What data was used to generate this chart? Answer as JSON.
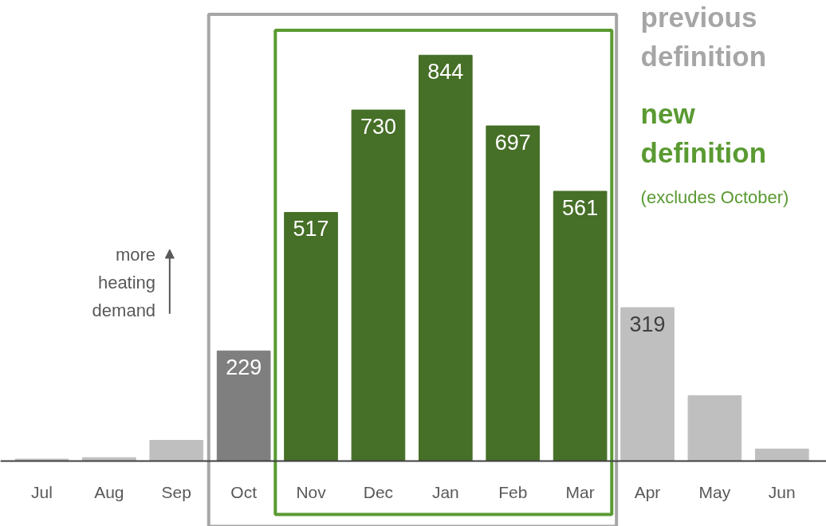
{
  "chart_data": {
    "type": "bar",
    "categories": [
      "Jul",
      "Aug",
      "Sep",
      "Oct",
      "Nov",
      "Dec",
      "Jan",
      "Feb",
      "Mar",
      "Apr",
      "May",
      "Jun"
    ],
    "values": [
      4,
      7,
      43,
      229,
      517,
      730,
      844,
      697,
      561,
      319,
      136,
      25
    ],
    "colors": [
      "#bfbfbf",
      "#bfbfbf",
      "#bfbfbf",
      "#7f7f7f",
      "#466f27",
      "#466f27",
      "#466f27",
      "#466f27",
      "#466f27",
      "#bfbfbf",
      "#bfbfbf",
      "#bfbfbf"
    ],
    "value_labels": [
      null,
      null,
      null,
      "229",
      "517",
      "730",
      "844",
      "697",
      "561",
      "319",
      null,
      null
    ],
    "annotations": [
      "previous definition",
      "new definition",
      "(excludes October)",
      "more heating demand"
    ],
    "grid": false
  }
}
